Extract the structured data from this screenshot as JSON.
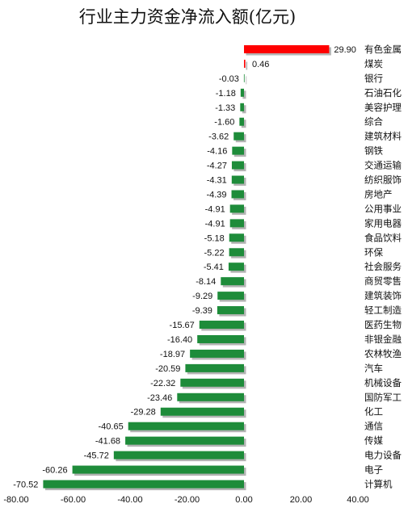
{
  "chart_data": {
    "type": "bar",
    "orientation": "horizontal",
    "title": "行业主力资金净流入额(亿元)",
    "xlabel": "",
    "ylabel": "",
    "xlim": [
      -80,
      40
    ],
    "xticks": [
      "-80.00",
      "-60.00",
      "-40.00",
      "-20.00",
      "0.00",
      "20.00",
      "40.00"
    ],
    "grid": false,
    "legend": "none",
    "colors": {
      "positive": "#ff0000",
      "negative": "#1e8c3a",
      "shadow": "#b4b4b4"
    },
    "categories": [
      "有色金属",
      "煤炭",
      "银行",
      "石油石化",
      "美容护理",
      "综合",
      "建筑材料",
      "钢铁",
      "交通运输",
      "纺织服饰",
      "房地产",
      "公用事业",
      "家用电器",
      "食品饮料",
      "环保",
      "社会服务",
      "商贸零售",
      "建筑装饰",
      "轻工制造",
      "医药生物",
      "非银金融",
      "农林牧渔",
      "汽车",
      "机械设备",
      "国防军工",
      "化工",
      "通信",
      "传媒",
      "电力设备",
      "电子",
      "计算机"
    ],
    "values": [
      29.9,
      0.46,
      -0.03,
      -1.18,
      -1.33,
      -1.6,
      -3.62,
      -4.16,
      -4.27,
      -4.31,
      -4.39,
      -4.91,
      -4.91,
      -5.18,
      -5.22,
      -5.41,
      -8.14,
      -9.29,
      -9.39,
      -15.67,
      -16.4,
      -18.97,
      -20.59,
      -22.32,
      -23.46,
      -29.28,
      -40.65,
      -41.68,
      -45.72,
      -60.26,
      -70.52
    ],
    "value_labels": [
      "29.90",
      "0.46",
      "-0.03",
      "-1.18",
      "-1.33",
      "-1.60",
      "-3.62",
      "-4.16",
      "-4.27",
      "-4.31",
      "-4.39",
      "-4.91",
      "-4.91",
      "-5.18",
      "-5.22",
      "-5.41",
      "-8.14",
      "-9.29",
      "-9.39",
      "-15.67",
      "-16.40",
      "-18.97",
      "-20.59",
      "-22.32",
      "-23.46",
      "-29.28",
      "-40.65",
      "-41.68",
      "-45.72",
      "-60.26",
      "-70.52"
    ]
  }
}
